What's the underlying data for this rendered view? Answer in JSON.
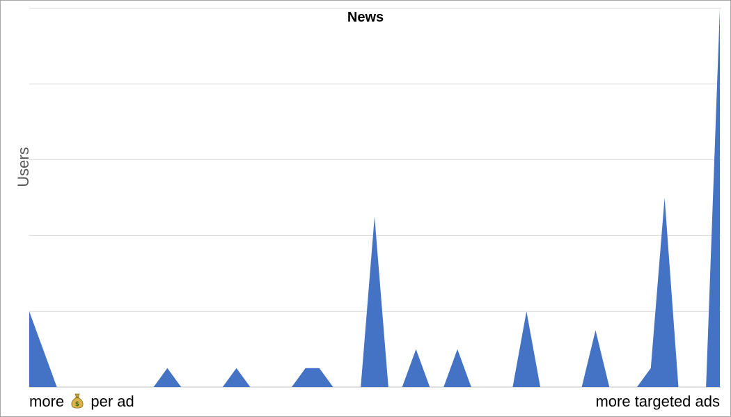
{
  "chart_data": {
    "type": "area",
    "title": "News",
    "ylabel": "Users",
    "xlabel_left": "more 💰 per ad",
    "xlabel_left_parts": [
      "more",
      "per ad"
    ],
    "xlabel_right": "more targeted ads",
    "ylim": [
      0,
      20
    ],
    "grid": true,
    "series_color": "#4472c4",
    "x": [
      0,
      1,
      2,
      3,
      4,
      5,
      6,
      7,
      8,
      9,
      10,
      11,
      12,
      13,
      14,
      15,
      16,
      17,
      18,
      19,
      20,
      21,
      22,
      23,
      24,
      25,
      26,
      27,
      28,
      29,
      30,
      31,
      32,
      33,
      34,
      35,
      36,
      37,
      38,
      39,
      40,
      41,
      42,
      43,
      44,
      45,
      46,
      47,
      48,
      49,
      50
    ],
    "values": [
      4,
      2,
      0,
      0,
      0,
      0,
      0,
      0,
      0,
      0,
      1,
      0,
      0,
      0,
      0,
      1,
      0,
      0,
      0,
      0,
      1,
      1,
      0,
      0,
      0,
      9,
      0,
      0,
      2,
      0,
      0,
      2,
      0,
      0,
      0,
      0,
      4,
      0,
      0,
      0,
      0,
      3,
      0,
      0,
      0,
      1,
      10,
      0,
      0,
      0,
      20
    ]
  }
}
